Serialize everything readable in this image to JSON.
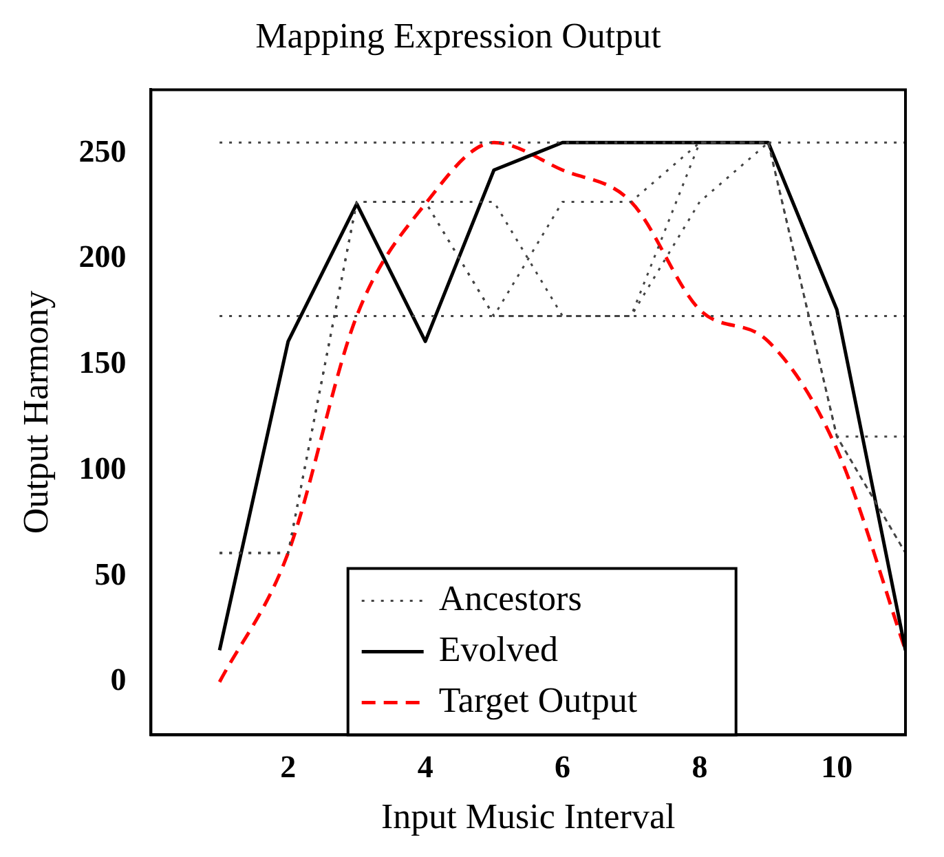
{
  "chart_data": {
    "type": "line",
    "title": "Mapping Expression Output",
    "xlabel": "Input Music Interval",
    "ylabel": "Output Harmony",
    "x": [
      1,
      2,
      3,
      4,
      5,
      6,
      7,
      8,
      9,
      10,
      11
    ],
    "series": [
      {
        "name": "Ancestors",
        "color": "#444444",
        "line_style": "dotted",
        "values": [
          255,
          255,
          255,
          255,
          255,
          255,
          255,
          255,
          255,
          255,
          255
        ]
      },
      {
        "color": "#444444",
        "line_style": "dotted",
        "values": [
          173,
          173,
          173,
          173,
          173,
          173,
          173,
          173,
          173,
          173,
          173
        ]
      },
      {
        "color": "#444444",
        "line_style": "dotted",
        "values": [
          61,
          61,
          227,
          227,
          173,
          227,
          227,
          255,
          255,
          116,
          116
        ]
      },
      {
        "color": "#444444",
        "line_style": "dotted",
        "values": [
          61,
          61,
          227,
          227,
          227,
          173,
          173,
          255,
          255,
          116,
          61
        ]
      },
      {
        "color": "#444444",
        "line_style": "dotted",
        "values": [
          61,
          61,
          227,
          227,
          173,
          173,
          173,
          227,
          255,
          116,
          61
        ]
      },
      {
        "name": "Evolved",
        "color": "#000000",
        "line_style": "solid",
        "values": [
          15,
          161,
          226,
          161,
          242,
          255,
          255,
          255,
          255,
          176,
          15
        ]
      },
      {
        "name": "Target Output",
        "color": "#ff0000",
        "line_style": "dashed",
        "values": [
          0,
          61,
          173,
          226,
          255,
          242,
          227,
          176,
          161,
          110,
          15
        ]
      }
    ],
    "xlim": [
      0,
      11
    ],
    "xticks": [
      2,
      4,
      6,
      8,
      10
    ],
    "ylim": [
      -25,
      280
    ],
    "yticks": [
      0,
      50,
      100,
      150,
      200,
      250
    ],
    "grid": false,
    "legend": "bottom",
    "marker": "none"
  }
}
